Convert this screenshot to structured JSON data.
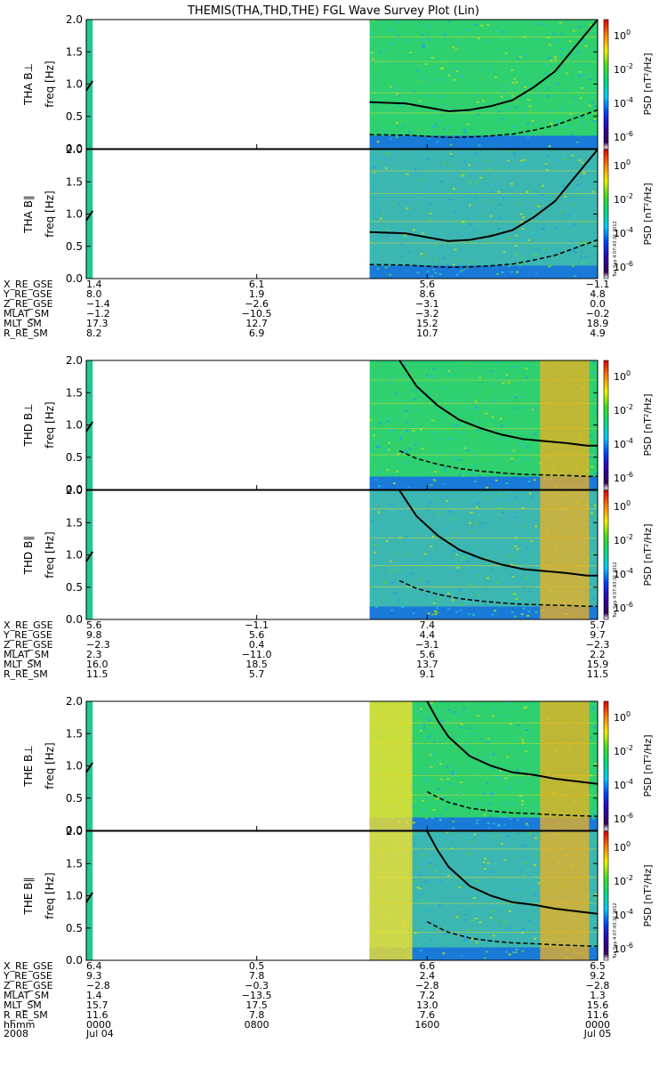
{
  "title": "THEMIS(THA,THD,THE) FGL Wave Survey Plot (Lin)",
  "freq_axis_label": "freq [Hz]",
  "yticks": [
    "0.0",
    "0.5",
    "1.0",
    "1.5",
    "2.0"
  ],
  "colorbar": {
    "label": "PSD [nT²/Hz]",
    "ticks": [
      {
        "base": "10",
        "exp": "0"
      },
      {
        "base": "10",
        "exp": "-2"
      },
      {
        "base": "10",
        "exp": "-4"
      },
      {
        "base": "10",
        "exp": "-6"
      }
    ],
    "stamp": "Tue Sep  4 07:43:31 2012"
  },
  "orbit_labels": [
    "X_RE_GSE",
    "Y_RE_GSE",
    "Z_RE_GSE",
    "MLAT_SM",
    "MLT_SM",
    "R_RE_SM"
  ],
  "time_rows": {
    "hhmm_label": "hhmm",
    "year_label": "2008",
    "times": [
      "0000",
      "0800",
      "1600",
      "0000"
    ],
    "dates": [
      "Jul 04",
      "",
      "",
      "Jul 05"
    ]
  },
  "chart_data": [
    {
      "type": "heatmap",
      "probe": "THA",
      "panels": [
        "THA B⊥",
        "THA B∥"
      ],
      "ylabel": "freq [Hz]",
      "ylim": [
        0,
        2.0
      ],
      "x_hours": [
        0,
        8,
        16,
        24
      ],
      "data_start_hour": 13.3,
      "early_segment_hours": [
        0,
        0.3
      ],
      "gyro_curve_x": [
        13.3,
        15,
        16,
        17,
        18,
        19,
        20,
        21,
        22,
        23,
        24
      ],
      "gyro_curve_y": [
        0.72,
        0.7,
        0.64,
        0.58,
        0.6,
        0.66,
        0.75,
        0.95,
        1.2,
        1.6,
        2.0
      ],
      "orbit": {
        "X_RE_GSE": [
          "1.4",
          "6.1",
          "5.6",
          "−1.1"
        ],
        "Y_RE_GSE": [
          "8.0",
          "1.9",
          "8.6",
          "4.8"
        ],
        "Z_RE_GSE": [
          "−1.4",
          "−2.6",
          "−3.1",
          "0.0"
        ],
        "MLAT_SM": [
          "−1.2",
          "−10.5",
          "−3.2",
          "−0.2"
        ],
        "MLT_SM": [
          "17.3",
          "12.7",
          "15.2",
          "18.9"
        ],
        "R_RE_SM": [
          "8.2",
          "6.9",
          "10.7",
          "4.9"
        ]
      }
    },
    {
      "type": "heatmap",
      "probe": "THD",
      "panels": [
        "THD B⊥",
        "THD B∥"
      ],
      "ylabel": "freq [Hz]",
      "ylim": [
        0,
        2.0
      ],
      "x_hours": [
        0,
        8,
        16,
        24
      ],
      "data_start_hour": 13.3,
      "early_segment_hours": [
        0,
        0.3
      ],
      "gyro_curve_x": [
        14.7,
        15.5,
        16.5,
        17.5,
        18.5,
        19.5,
        20.5,
        21.5,
        22.5,
        23.5,
        24
      ],
      "gyro_curve_y": [
        2.0,
        1.6,
        1.3,
        1.08,
        0.95,
        0.85,
        0.78,
        0.75,
        0.72,
        0.68,
        0.68
      ],
      "orbit": {
        "X_RE_GSE": [
          "5.6",
          "−1.1",
          "7.4",
          "5.7"
        ],
        "Y_RE_GSE": [
          "9.8",
          "5.6",
          "4.4",
          "9.7"
        ],
        "Z_RE_GSE": [
          "−2.3",
          "0.4",
          "−3.1",
          "−2.3"
        ],
        "MLAT_SM": [
          "2.3",
          "−11.0",
          "5.6",
          "2.2"
        ],
        "MLT_SM": [
          "16.0",
          "18.5",
          "13.7",
          "15.9"
        ],
        "R_RE_SM": [
          "11.5",
          "5.7",
          "9.1",
          "11.5"
        ]
      }
    },
    {
      "type": "heatmap",
      "probe": "THE",
      "panels": [
        "THE B⊥",
        "THE B∥"
      ],
      "ylabel": "freq [Hz]",
      "ylim": [
        0,
        2.0
      ],
      "x_hours": [
        0,
        8,
        16,
        24
      ],
      "data_start_hour": 13.3,
      "early_segment_hours": [
        0,
        0.3
      ],
      "gyro_curve_x": [
        16.0,
        16.5,
        17.0,
        18.0,
        19.0,
        20.0,
        21.0,
        22.0,
        23.0,
        24.0
      ],
      "gyro_curve_y": [
        2.0,
        1.7,
        1.45,
        1.15,
        1.0,
        0.9,
        0.86,
        0.8,
        0.76,
        0.72
      ],
      "orbit": {
        "X_RE_GSE": [
          "6.4",
          "0.5",
          "6.6",
          "6.5"
        ],
        "Y_RE_GSE": [
          "9.3",
          "7.8",
          "2.4",
          "9.2"
        ],
        "Z_RE_GSE": [
          "−2.8",
          "−0.3",
          "−2.8",
          "−2.8"
        ],
        "MLAT_SM": [
          "1.4",
          "−13.5",
          "7.2",
          "1.3"
        ],
        "MLT_SM": [
          "15.7",
          "17.5",
          "13.0",
          "15.6"
        ],
        "R_RE_SM": [
          "11.6",
          "7.8",
          "7.6",
          "11.6"
        ]
      }
    }
  ]
}
